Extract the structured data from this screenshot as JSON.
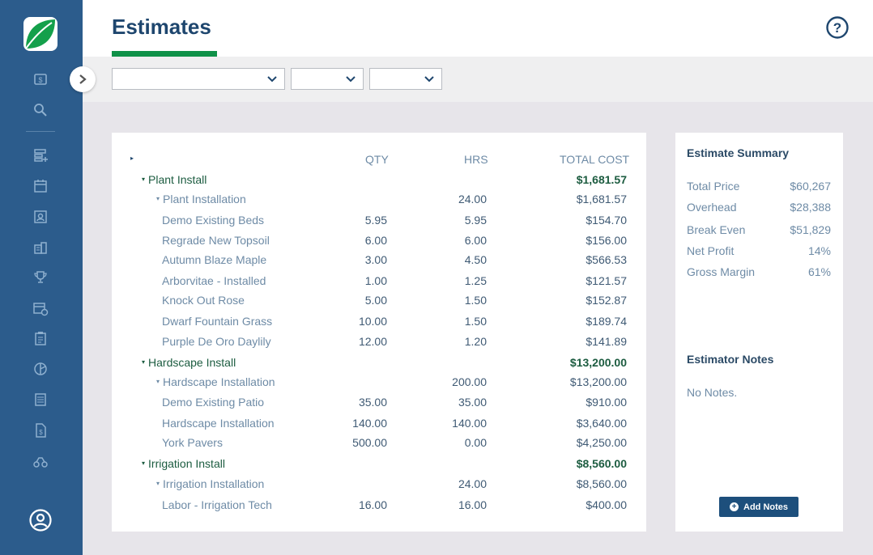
{
  "header": {
    "title": "Estimates"
  },
  "filters": [
    {
      "value": ""
    },
    {
      "value": ""
    },
    {
      "value": ""
    }
  ],
  "table": {
    "columns": {
      "qty": "QTY",
      "hrs": "HRS",
      "total": "TOTAL COST"
    },
    "rows": [
      {
        "level": "group",
        "name": "Plant Install",
        "qty": "",
        "hrs": "",
        "total": "$1,681.57"
      },
      {
        "level": "sub",
        "name": "Plant Installation",
        "qty": "",
        "hrs": "24.00",
        "total": "$1,681.57"
      },
      {
        "level": "item",
        "name": "Demo Existing Beds",
        "qty": "5.95",
        "hrs": "5.95",
        "total": "$154.70"
      },
      {
        "level": "item",
        "name": "Regrade New Topsoil",
        "qty": "6.00",
        "hrs": "6.00",
        "total": "$156.00"
      },
      {
        "level": "item",
        "name": "Autumn Blaze Maple",
        "qty": "3.00",
        "hrs": "4.50",
        "total": "$566.53"
      },
      {
        "level": "item",
        "name": "Arborvitae - Installed",
        "qty": "1.00",
        "hrs": "1.25",
        "total": "$121.57"
      },
      {
        "level": "item",
        "name": "Knock Out Rose",
        "qty": "5.00",
        "hrs": "1.50",
        "total": "$152.87"
      },
      {
        "level": "item",
        "name": "Dwarf Fountain Grass",
        "qty": "10.00",
        "hrs": "1.50",
        "total": "$189.74"
      },
      {
        "level": "item",
        "name": "Purple De Oro Daylily",
        "qty": "12.00",
        "hrs": "1.20",
        "total": "$141.89"
      },
      {
        "level": "group",
        "name": "Hardscape Install",
        "qty": "",
        "hrs": "",
        "total": "$13,200.00"
      },
      {
        "level": "sub",
        "name": "Hardscape Installation",
        "qty": "",
        "hrs": "200.00",
        "total": "$13,200.00"
      },
      {
        "level": "item",
        "name": "Demo Existing Patio",
        "qty": "35.00",
        "hrs": "35.00",
        "total": "$910.00"
      },
      {
        "level": "item",
        "name": "Hardscape Installation",
        "qty": "140.00",
        "hrs": "140.00",
        "total": "$3,640.00"
      },
      {
        "level": "item",
        "name": "York Pavers",
        "qty": "500.00",
        "hrs": "0.00",
        "total": "$4,250.00"
      },
      {
        "level": "group",
        "name": "Irrigation Install",
        "qty": "",
        "hrs": "",
        "total": "$8,560.00"
      },
      {
        "level": "sub",
        "name": "Irrigation Installation",
        "qty": "",
        "hrs": "24.00",
        "total": "$8,560.00"
      },
      {
        "level": "item",
        "name": "Labor - Irrigation Tech",
        "qty": "16.00",
        "hrs": "16.00",
        "total": "$400.00"
      }
    ]
  },
  "summary": {
    "title": "Estimate Summary",
    "rows": [
      {
        "label": "Total Price",
        "value": "$60,267"
      },
      {
        "label": "Overhead",
        "value": "$28,388"
      },
      {
        "label": "Break Even",
        "value": "$51,829"
      },
      {
        "label": "Net Profit",
        "value": "14%"
      },
      {
        "label": "Gross Margin",
        "value": "61%"
      }
    ],
    "notes_title": "Estimator Notes",
    "notes_text": "No Notes.",
    "add_notes_label": "Add Notes"
  },
  "sidebar": {
    "icons": [
      "dollar-icon",
      "search-icon",
      "list-add-icon",
      "calendar-icon",
      "contact-card-icon",
      "building-icon",
      "trophy-icon",
      "calendar-clock-icon",
      "clipboard-icon",
      "pie-chart-icon",
      "document-list-icon",
      "invoice-icon",
      "equipment-icon",
      "user-icon"
    ]
  },
  "colors": {
    "sidebar": "#2c5c8c",
    "accent_green": "#0f9148",
    "group_text": "#1c5c40",
    "button": "#1d4f7c"
  }
}
